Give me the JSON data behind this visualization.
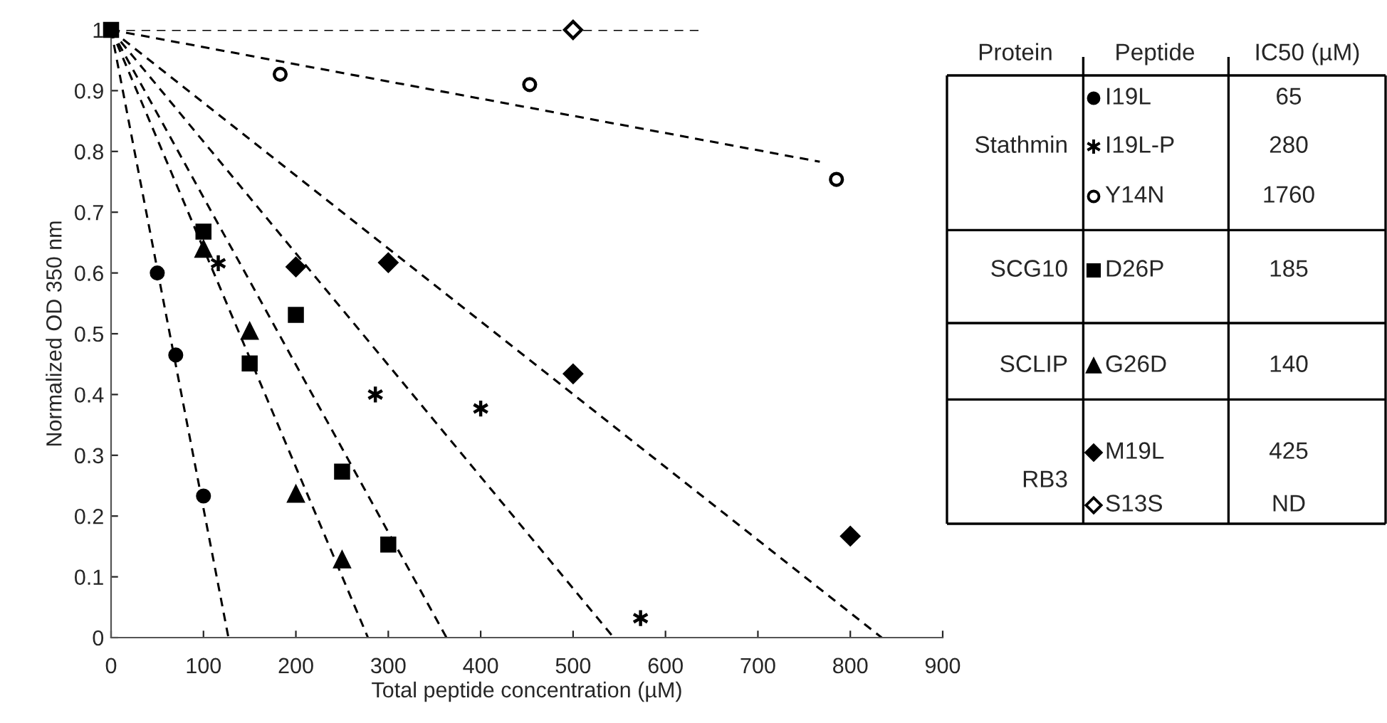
{
  "chart_data": {
    "type": "scatter",
    "xlabel": "Total peptide concentration (µM)",
    "ylabel": "Normalized OD 350 nm",
    "xlim": [
      0,
      900
    ],
    "xticks": [
      0,
      100,
      200,
      300,
      400,
      500,
      600,
      700,
      800,
      900
    ],
    "ylim": [
      0,
      1
    ],
    "yticks": [
      0,
      0.1,
      0.2,
      0.3,
      0.4,
      0.5,
      0.6,
      0.7,
      0.8,
      0.9,
      1
    ],
    "grid": false,
    "legend": "right",
    "series": [
      {
        "name": "I19L",
        "marker": "circle",
        "color": "#000000",
        "x": [
          50,
          70,
          100
        ],
        "values": [
          0.6,
          0.465,
          0.233
        ]
      },
      {
        "name": "I19L-P",
        "marker": "cross",
        "color": "#000000",
        "x": [
          116,
          286,
          400,
          573
        ],
        "values": [
          0.616,
          0.4,
          0.377,
          0.032
        ]
      },
      {
        "name": "Y14N",
        "marker": "circle",
        "color": "#ffffff",
        "x": [
          183,
          453,
          785
        ],
        "values": [
          0.927,
          0.91,
          0.754
        ]
      },
      {
        "name": "D26P",
        "marker": "square",
        "color": "#000000",
        "x": [
          0,
          100,
          150,
          200,
          250,
          300
        ],
        "values": [
          1,
          0.668,
          0.451,
          0.531,
          0.273,
          0.153
        ]
      },
      {
        "name": "G26D",
        "marker": "triangle",
        "color": "#000000",
        "x": [
          100,
          150,
          200,
          250
        ],
        "values": [
          0.639,
          0.504,
          0.236,
          0.128
        ]
      },
      {
        "name": "M19L",
        "marker": "diamond",
        "color": "#000000",
        "x": [
          200,
          300,
          500,
          800
        ],
        "values": [
          0.61,
          0.617,
          0.434,
          0.167
        ]
      },
      {
        "name": "S13S",
        "marker": "diamond",
        "color": "#ffffff",
        "x": [
          500
        ],
        "values": [
          1
        ]
      },
      {
        "type": "line",
        "line_style": "dashed",
        "marker": "none",
        "color": "#000000",
        "x": [
          0,
          127
        ],
        "values": [
          1,
          0
        ]
      },
      {
        "type": "line",
        "line_style": "dashed",
        "marker": "none",
        "color": "#000000",
        "x": [
          0,
          544
        ],
        "values": [
          1,
          0
        ]
      },
      {
        "type": "line",
        "line_style": "dashed",
        "marker": "none",
        "color": "#000000",
        "x": [
          0,
          767
        ],
        "values": [
          1,
          0.783
        ]
      },
      {
        "type": "line",
        "line_style": "dashed",
        "marker": "none",
        "color": "#000000",
        "x": [
          0,
          363
        ],
        "values": [
          1,
          0
        ]
      },
      {
        "type": "line",
        "line_style": "dashed",
        "marker": "none",
        "color": "#000000",
        "x": [
          0,
          278
        ],
        "values": [
          1,
          0
        ]
      },
      {
        "type": "line",
        "line_style": "dashed",
        "marker": "none",
        "color": "#000000",
        "x": [
          0,
          834
        ],
        "values": [
          1,
          0
        ]
      },
      {
        "type": "line",
        "line_style": "dashed",
        "marker": "none",
        "color": "#000000",
        "x": [
          0,
          640
        ],
        "values": [
          1,
          1
        ]
      }
    ],
    "annotations": [
      "Protein",
      "Peptide",
      "IC50 (µM)",
      "Stathmin",
      "SCG10",
      "SCLIP",
      "RB3",
      "65",
      "280",
      "1760",
      "185",
      "140",
      "425",
      "ND"
    ]
  }
}
